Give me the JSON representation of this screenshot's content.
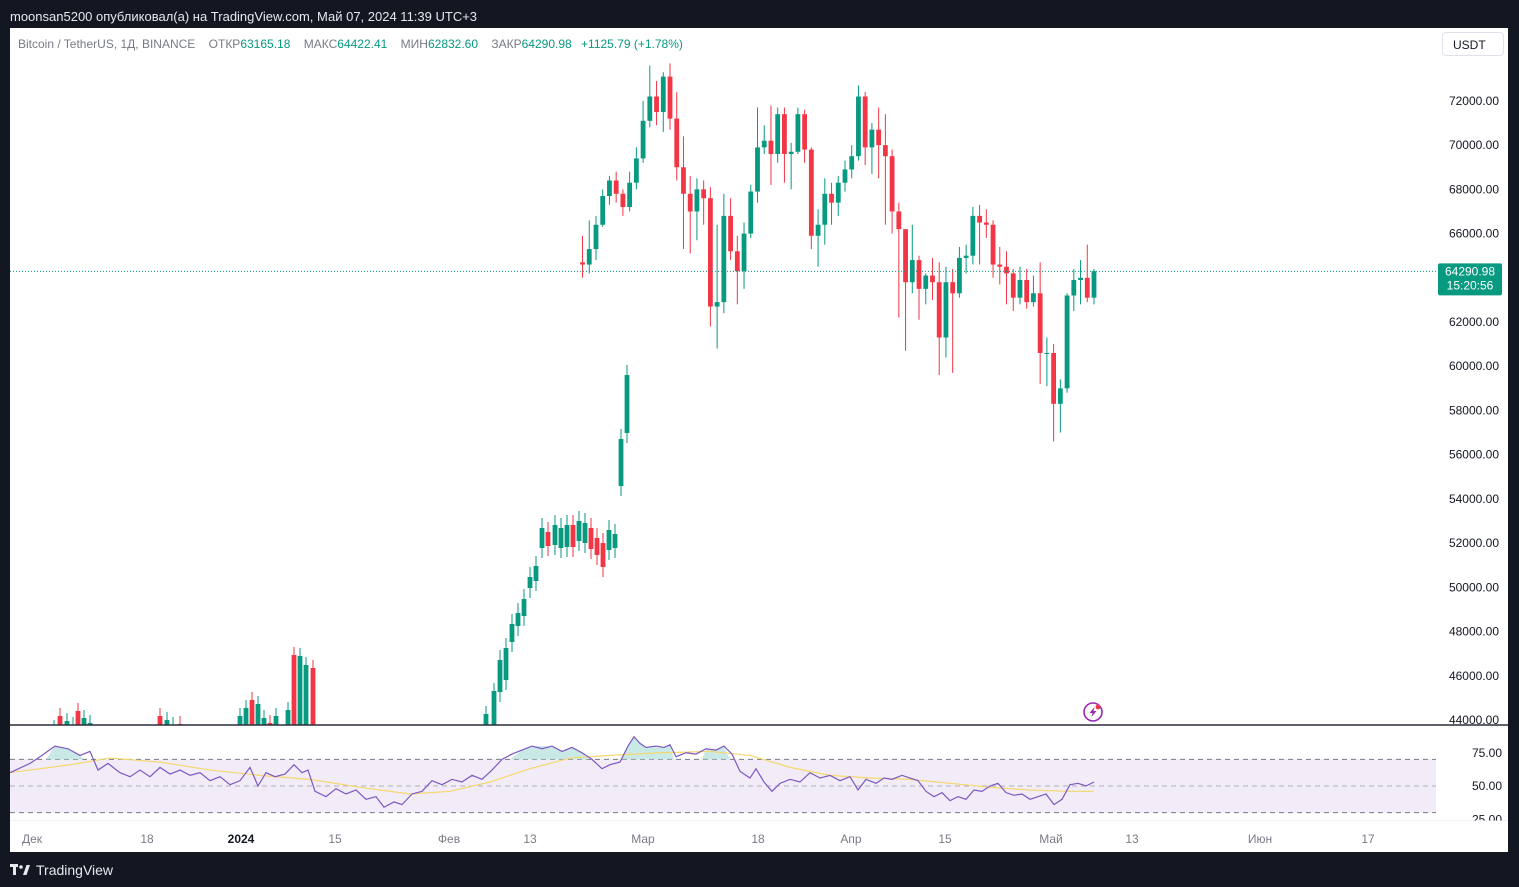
{
  "header": {
    "caption": "moonsan5200 опубликовал(а) на TradingView.com, Май 07, 2024 11:39 UTC+3"
  },
  "legend": {
    "symbol": "Bitcoin / TetherUS, 1Д, BINANCE",
    "open_label": "ОТКР",
    "open": "63165.18",
    "high_label": "МАКС",
    "high": "64422.41",
    "low_label": "МИН",
    "low": "62832.60",
    "close_label": "ЗАКР",
    "close": "64290.98",
    "change": "+1125.79 (+1.78%)"
  },
  "currency_button": "USDT",
  "price_axis": {
    "ticks": [
      "72000.00",
      "70000.00",
      "68000.00",
      "66000.00",
      "62000.00",
      "60000.00",
      "58000.00",
      "56000.00",
      "54000.00",
      "52000.00",
      "50000.00",
      "48000.00",
      "46000.00",
      "44000.00"
    ],
    "last_price": "64290.98",
    "countdown": "15:20:56"
  },
  "rsi_axis": {
    "ticks": [
      "75.00",
      "50.00",
      "25.00"
    ]
  },
  "time_axis": {
    "labels": [
      "Дек",
      "18",
      "2024",
      "15",
      "Фев",
      "13",
      "Мар",
      "18",
      "Апр",
      "15",
      "Май",
      "13",
      "Июн",
      "17"
    ]
  },
  "footer": {
    "brand": "TradingView"
  },
  "colors": {
    "up": "#089981",
    "down": "#f23645",
    "rsi": "#7e57c2",
    "rsi_ma": "#f5d76e",
    "bg": "#131722"
  },
  "icons": [
    "tradingview-logo-icon",
    "lightning-event-icon"
  ],
  "chart_data": {
    "type": "candlestick",
    "title": "Bitcoin / TetherUS, 1Д, BINANCE",
    "ylim": [
      44000,
      74000
    ],
    "candles": [
      [
        64700,
        64600,
        64000,
        65900
      ],
      [
        64600,
        65300,
        64200,
        66600
      ],
      [
        65300,
        66400,
        64800,
        66800
      ],
      [
        66400,
        67700,
        66300,
        68000
      ],
      [
        67700,
        68400,
        67300,
        68600
      ],
      [
        68400,
        67800,
        67400,
        68800
      ],
      [
        67800,
        67200,
        66800,
        68000
      ],
      [
        67200,
        68300,
        67000,
        68800
      ],
      [
        68300,
        69400,
        68000,
        69900
      ],
      [
        69400,
        71100,
        69200,
        72000
      ],
      [
        71100,
        72200,
        70800,
        73600
      ],
      [
        72200,
        71500,
        70900,
        72900
      ],
      [
        71500,
        73100,
        70600,
        73300
      ],
      [
        73100,
        71200,
        70700,
        73700
      ],
      [
        71200,
        69000,
        68400,
        72400
      ],
      [
        69000,
        67800,
        65300,
        70400
      ],
      [
        67800,
        67000,
        65100,
        68600
      ],
      [
        67000,
        68000,
        65700,
        68500
      ],
      [
        68000,
        67600,
        66400,
        68400
      ],
      [
        67600,
        62700,
        61800,
        68100
      ],
      [
        62700,
        62900,
        60800,
        66400
      ],
      [
        62900,
        66800,
        62400,
        67800
      ],
      [
        66800,
        65200,
        64800,
        67600
      ],
      [
        65200,
        64300,
        62800,
        65900
      ],
      [
        64300,
        66000,
        63500,
        66500
      ],
      [
        66000,
        67900,
        65800,
        68200
      ],
      [
        67900,
        69900,
        67400,
        71700
      ],
      [
        69900,
        70200,
        69600,
        70900
      ],
      [
        70200,
        69600,
        68200,
        71800
      ],
      [
        69600,
        71400,
        69200,
        71700
      ],
      [
        71400,
        69600,
        68300,
        71700
      ],
      [
        69600,
        69700,
        68000,
        70100
      ],
      [
        69700,
        71400,
        69600,
        71700
      ],
      [
        71400,
        69800,
        69200,
        71600
      ],
      [
        69800,
        65900,
        65300,
        69900
      ],
      [
        65900,
        66400,
        64500,
        67100
      ],
      [
        66400,
        67800,
        65500,
        68500
      ],
      [
        67800,
        67400,
        66400,
        68300
      ],
      [
        67400,
        68300,
        66800,
        68600
      ],
      [
        68300,
        68900,
        67900,
        69300
      ],
      [
        68900,
        69500,
        68500,
        70000
      ],
      [
        69500,
        72200,
        69300,
        72700
      ],
      [
        72200,
        69900,
        69100,
        72400
      ],
      [
        69900,
        70700,
        68700,
        71000
      ],
      [
        70700,
        70000,
        68500,
        71700
      ],
      [
        70000,
        69500,
        66400,
        71400
      ],
      [
        69500,
        67000,
        66000,
        69800
      ],
      [
        67000,
        66200,
        62200,
        67400
      ],
      [
        66200,
        63800,
        60700,
        66200
      ],
      [
        63800,
        64800,
        63300,
        66400
      ],
      [
        64800,
        63500,
        62100,
        65000
      ],
      [
        63500,
        64100,
        62800,
        64200
      ],
      [
        64100,
        63800,
        63000,
        64900
      ],
      [
        63800,
        61300,
        59600,
        64700
      ],
      [
        61300,
        63800,
        60400,
        64500
      ],
      [
        63800,
        63300,
        59700,
        64400
      ],
      [
        63300,
        64900,
        63100,
        65400
      ],
      [
        64900,
        65000,
        64200,
        65500
      ],
      [
        65000,
        66800,
        64600,
        67200
      ],
      [
        66800,
        66500,
        64600,
        67300
      ],
      [
        66500,
        66400,
        65800,
        67100
      ],
      [
        66400,
        64600,
        64000,
        66600
      ],
      [
        64600,
        64500,
        63700,
        65400
      ],
      [
        64500,
        64200,
        62800,
        65200
      ],
      [
        64200,
        63100,
        62500,
        64400
      ],
      [
        63100,
        63900,
        62800,
        64500
      ],
      [
        63900,
        62900,
        62600,
        64400
      ],
      [
        62900,
        63300,
        62700,
        64100
      ],
      [
        63300,
        60600,
        59200,
        64700
      ],
      [
        60600,
        60600,
        59100,
        61300
      ],
      [
        60600,
        58300,
        56600,
        61000
      ],
      [
        58300,
        59000,
        57000,
        59400
      ],
      [
        59000,
        63200,
        58800,
        63300
      ],
      [
        63200,
        63900,
        62500,
        64400
      ],
      [
        63900,
        64000,
        62800,
        64800
      ],
      [
        64000,
        63100,
        62900,
        65500
      ],
      [
        63100,
        64300,
        62800,
        64400
      ]
    ]
  }
}
